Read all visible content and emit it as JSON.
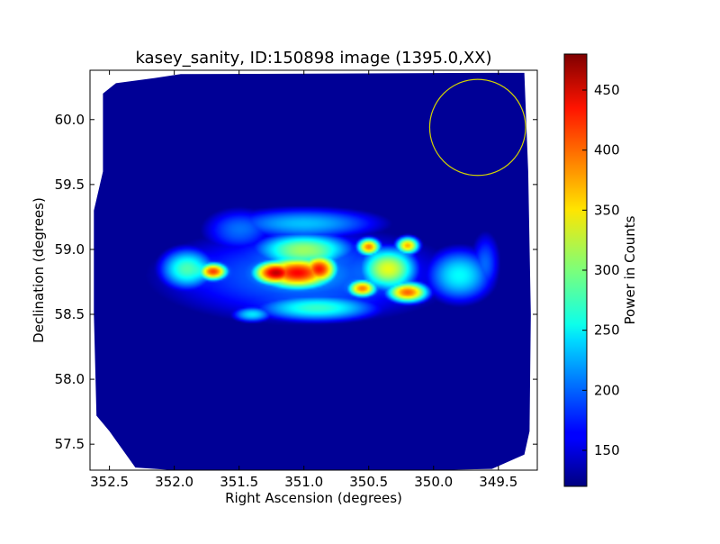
{
  "chart_data": {
    "type": "heatmap",
    "title": "kasey_sanity, ID:150898 image (1395.0,XX)",
    "xlabel": "Right Ascension (degrees)",
    "ylabel": "Declination (degrees)",
    "xlim": [
      352.65,
      349.2
    ],
    "ylim": [
      57.3,
      60.38
    ],
    "x_ticks": [
      352.5,
      352.0,
      351.5,
      351.0,
      350.5,
      350.0,
      349.5
    ],
    "x_tick_labels": [
      "352.5",
      "352.0",
      "351.5",
      "351.0",
      "350.5",
      "350.0",
      "349.5"
    ],
    "y_ticks": [
      57.5,
      58.0,
      58.5,
      59.0,
      59.5,
      60.0
    ],
    "y_tick_labels": [
      "57.5",
      "58.0",
      "58.5",
      "59.0",
      "59.5",
      "60.0"
    ],
    "grid": false,
    "colorbar": {
      "label": "Power in Counts",
      "colormap": "jet",
      "range": [
        120,
        480
      ],
      "ticks": [
        150,
        200,
        250,
        300,
        350,
        400,
        450
      ],
      "tick_labels": [
        "150",
        "200",
        "250",
        "300",
        "350",
        "400",
        "450"
      ]
    },
    "background_level": 128,
    "coverage_boundary": [
      [
        352.45,
        60.28
      ],
      [
        352.15,
        60.32
      ],
      [
        351.95,
        60.35
      ],
      [
        349.55,
        60.36
      ],
      [
        349.3,
        60.36
      ],
      [
        349.27,
        59.6
      ],
      [
        349.25,
        58.5
      ],
      [
        349.26,
        57.6
      ],
      [
        349.3,
        57.42
      ],
      [
        349.55,
        57.31
      ],
      [
        350.05,
        57.3
      ],
      [
        352.0,
        57.3
      ],
      [
        352.3,
        57.32
      ],
      [
        352.5,
        57.6
      ],
      [
        352.6,
        57.72
      ],
      [
        352.62,
        58.5
      ],
      [
        352.62,
        59.3
      ],
      [
        352.55,
        59.6
      ],
      [
        352.55,
        60.2
      ]
    ],
    "features": [
      {
        "ra": 351.05,
        "dec": 58.82,
        "peak": 470,
        "sigma_ra": 0.25,
        "sigma_dec": 0.11
      },
      {
        "ra": 351.22,
        "dec": 58.82,
        "peak": 470,
        "sigma_ra": 0.15,
        "sigma_dec": 0.08
      },
      {
        "ra": 350.88,
        "dec": 58.85,
        "peak": 440,
        "sigma_ra": 0.12,
        "sigma_dec": 0.1
      },
      {
        "ra": 351.7,
        "dec": 58.83,
        "peak": 445,
        "sigma_ra": 0.1,
        "sigma_dec": 0.06
      },
      {
        "ra": 350.55,
        "dec": 58.7,
        "peak": 420,
        "sigma_ra": 0.1,
        "sigma_dec": 0.06
      },
      {
        "ra": 350.2,
        "dec": 58.67,
        "peak": 430,
        "sigma_ra": 0.14,
        "sigma_dec": 0.07
      },
      {
        "ra": 350.5,
        "dec": 59.02,
        "peak": 420,
        "sigma_ra": 0.08,
        "sigma_dec": 0.06
      },
      {
        "ra": 350.2,
        "dec": 59.03,
        "peak": 400,
        "sigma_ra": 0.08,
        "sigma_dec": 0.06
      },
      {
        "ra": 350.35,
        "dec": 58.85,
        "peak": 360,
        "sigma_ra": 0.2,
        "sigma_dec": 0.15
      },
      {
        "ra": 351.0,
        "dec": 59.0,
        "peak": 330,
        "sigma_ra": 0.35,
        "sigma_dec": 0.12
      },
      {
        "ra": 350.9,
        "dec": 58.55,
        "peak": 290,
        "sigma_ra": 0.45,
        "sigma_dec": 0.1
      },
      {
        "ra": 351.9,
        "dec": 58.85,
        "peak": 300,
        "sigma_ra": 0.2,
        "sigma_dec": 0.15
      },
      {
        "ra": 349.8,
        "dec": 58.8,
        "peak": 270,
        "sigma_ra": 0.25,
        "sigma_dec": 0.2
      },
      {
        "ra": 351.4,
        "dec": 58.5,
        "peak": 260,
        "sigma_ra": 0.15,
        "sigma_dec": 0.06
      },
      {
        "ra": 351.0,
        "dec": 59.2,
        "peak": 245,
        "sigma_ra": 0.6,
        "sigma_dec": 0.12
      },
      {
        "ra": 351.0,
        "dec": 58.8,
        "peak": 215,
        "sigma_ra": 1.2,
        "sigma_dec": 0.38
      },
      {
        "ra": 351.5,
        "dec": 59.15,
        "peak": 210,
        "sigma_ra": 0.3,
        "sigma_dec": 0.18
      },
      {
        "ra": 349.6,
        "dec": 58.9,
        "peak": 205,
        "sigma_ra": 0.12,
        "sigma_dec": 0.25
      },
      {
        "ra": 350.45,
        "dec": 58.88,
        "peak": 140,
        "sigma_ra": 0.05,
        "sigma_dec": 0.04
      }
    ],
    "annotation_circle": {
      "ra": 349.66,
      "dec": 59.94,
      "radius_ra": 0.37,
      "radius_dec": 0.37,
      "color": "#d4d400"
    }
  }
}
